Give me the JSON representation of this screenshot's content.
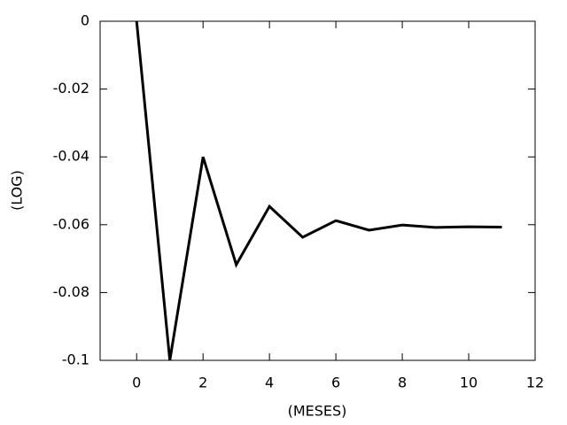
{
  "chart_data": {
    "type": "line",
    "x_label": "(MESES)",
    "y_label": "(LOG)",
    "x": [
      0,
      1,
      2,
      3,
      4,
      5,
      6,
      7,
      8,
      9,
      10,
      11
    ],
    "series": [
      {
        "color": "#000000",
        "values": [
          0,
          -0.1,
          -0.04,
          -0.0718,
          -0.0546,
          -0.0637,
          -0.0588,
          -0.0616,
          -0.0601,
          -0.0608,
          -0.0606,
          -0.0607
        ]
      }
    ],
    "xlim": [
      -1.1,
      12
    ],
    "xticks": [
      0,
      2,
      4,
      6,
      8,
      10,
      12
    ],
    "ylim": [
      -0.1,
      0
    ],
    "yticks": [
      0,
      -0.02,
      -0.04,
      -0.06,
      -0.08,
      -0.1
    ],
    "grid": false
  }
}
